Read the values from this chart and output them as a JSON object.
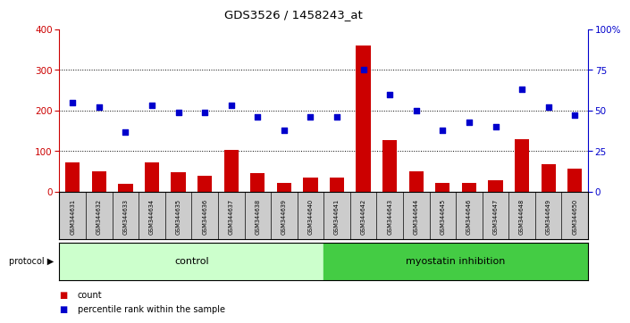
{
  "title": "GDS3526 / 1458243_at",
  "samples": [
    "GSM344631",
    "GSM344632",
    "GSM344633",
    "GSM344634",
    "GSM344635",
    "GSM344636",
    "GSM344637",
    "GSM344638",
    "GSM344639",
    "GSM344640",
    "GSM344641",
    "GSM344642",
    "GSM344643",
    "GSM344644",
    "GSM344645",
    "GSM344646",
    "GSM344647",
    "GSM344648",
    "GSM344649",
    "GSM344650"
  ],
  "counts": [
    72,
    50,
    20,
    72,
    48,
    40,
    102,
    45,
    22,
    35,
    35,
    360,
    128,
    50,
    22,
    22,
    28,
    130,
    68,
    58
  ],
  "percentile": [
    55,
    52,
    37,
    53,
    49,
    49,
    53,
    46,
    38,
    46,
    46,
    75,
    60,
    50,
    38,
    43,
    40,
    63,
    52,
    47
  ],
  "control_count": 10,
  "bar_color": "#cc0000",
  "dot_color": "#0000cc",
  "control_bg": "#ccffcc",
  "myostatin_bg": "#44cc44",
  "xtick_bg": "#cccccc",
  "ylim_left": [
    0,
    400
  ],
  "ylim_right": [
    0,
    100
  ],
  "yticks_left": [
    0,
    100,
    200,
    300,
    400
  ],
  "yticks_right": [
    0,
    25,
    50,
    75,
    100
  ],
  "ytick_labels_right": [
    "0",
    "25",
    "50",
    "75",
    "100%"
  ]
}
